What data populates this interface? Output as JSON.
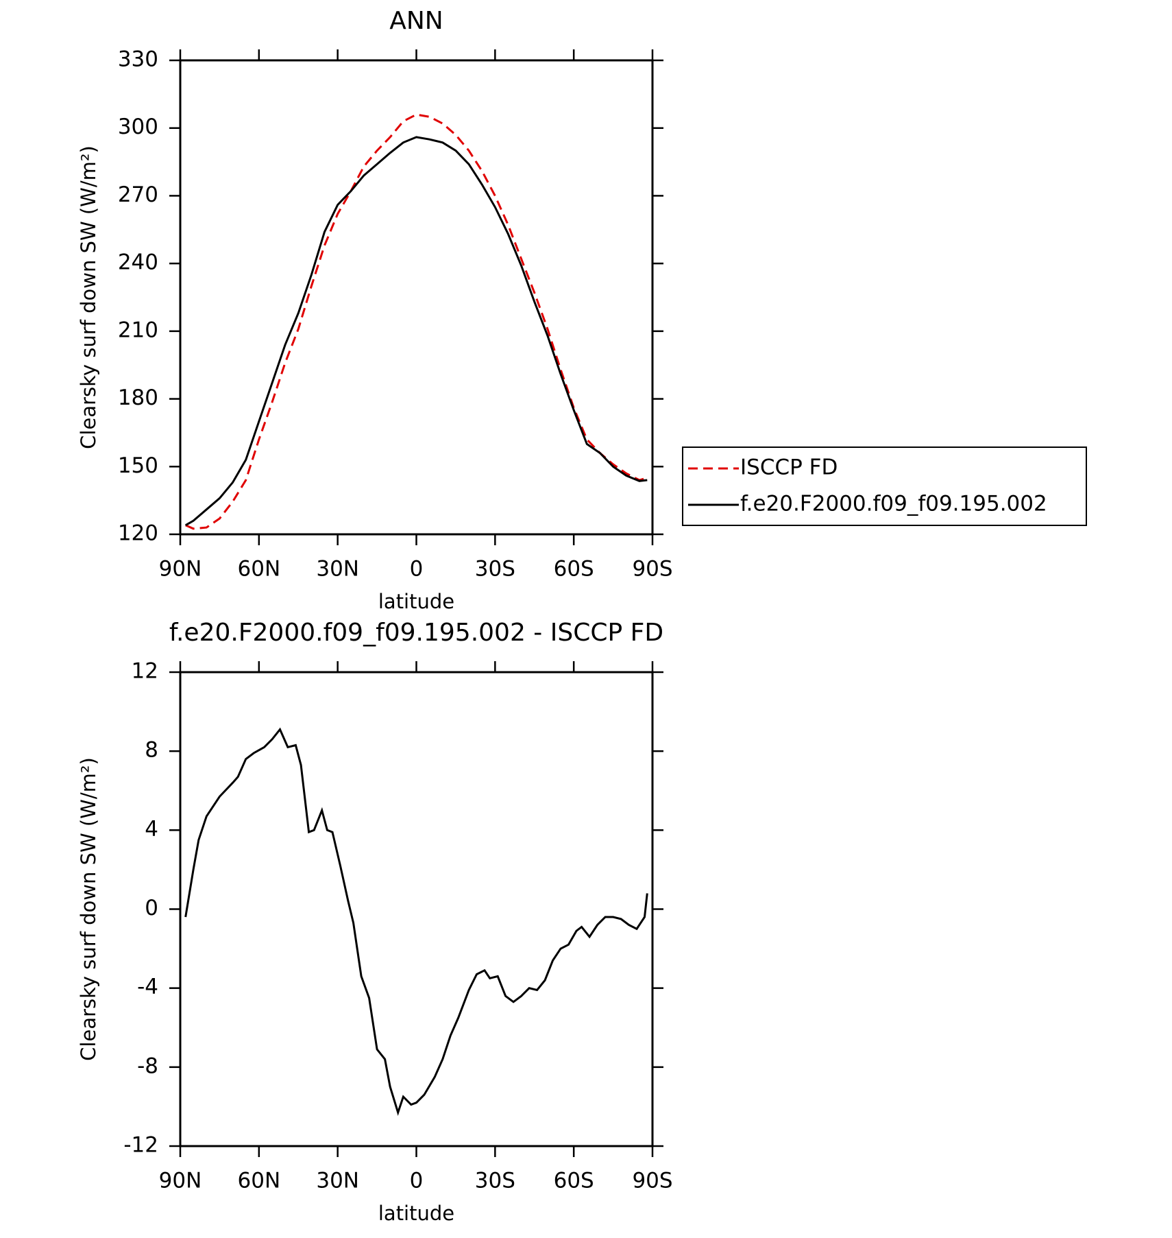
{
  "chart_data": [
    {
      "type": "line",
      "title": "ANN",
      "xlabel": "latitude",
      "ylabel": "Clearsky surf down SW (W/m²)",
      "xlim": [
        90,
        -90
      ],
      "xticks": [
        {
          "value": 90,
          "label": "90N"
        },
        {
          "value": 60,
          "label": "60N"
        },
        {
          "value": 30,
          "label": "30N"
        },
        0,
        {
          "value": -30,
          "label": "30S"
        },
        {
          "value": -60,
          "label": "60S"
        },
        {
          "value": -90,
          "label": "90S"
        }
      ],
      "ylim": [
        120,
        330
      ],
      "yticks": [
        120,
        150,
        180,
        210,
        240,
        270,
        300,
        330
      ],
      "legend": "right",
      "x": [
        88,
        85,
        80,
        75,
        70,
        65,
        60,
        55,
        50,
        45,
        40,
        35,
        30,
        25,
        20,
        15,
        10,
        5,
        0,
        -5,
        -10,
        -15,
        -20,
        -25,
        -30,
        -35,
        -40,
        -45,
        -50,
        -55,
        -60,
        -65,
        -70,
        -75,
        -80,
        -85,
        -88
      ],
      "series": [
        {
          "name": "ISCCP FD",
          "color": "#e00000",
          "dashed": true,
          "values": [
            124,
            122.5,
            123,
            127,
            134.5,
            144,
            162,
            178.5,
            196,
            211,
            230,
            248,
            262,
            272,
            283,
            290,
            296,
            303,
            306,
            305,
            302,
            297,
            290,
            281,
            270,
            257,
            242,
            227,
            211,
            193,
            176,
            162,
            156,
            151,
            147,
            144,
            145
          ]
        },
        {
          "name": "f.e20.F2000.f09_f09.195.002",
          "color": "#000000",
          "dashed": false,
          "values": [
            124,
            126,
            131,
            136,
            143,
            153,
            170,
            187,
            204,
            218,
            235,
            254,
            266,
            272,
            279,
            284,
            289,
            293.6,
            296,
            295,
            293.6,
            290,
            284,
            275,
            265,
            253,
            239,
            223,
            208,
            191,
            175,
            160,
            156,
            150,
            146,
            143.6,
            144
          ]
        }
      ]
    },
    {
      "type": "line",
      "title": "f.e20.F2000.f09_f09.195.002 - ISCCP FD",
      "xlabel": "latitude",
      "ylabel": "Clearsky surf down SW (W/m²)",
      "xlim": [
        90,
        -90
      ],
      "xticks": [
        {
          "value": 90,
          "label": "90N"
        },
        {
          "value": 60,
          "label": "60N"
        },
        {
          "value": 30,
          "label": "30N"
        },
        0,
        {
          "value": -30,
          "label": "30S"
        },
        {
          "value": -60,
          "label": "60S"
        },
        {
          "value": -90,
          "label": "90S"
        }
      ],
      "ylim": [
        -12,
        12
      ],
      "yticks": [
        -12,
        -8,
        -4,
        0,
        4,
        8,
        12
      ],
      "x": [
        88,
        85,
        83,
        80,
        75,
        70,
        68,
        65,
        62,
        58,
        55,
        52,
        49,
        46,
        44,
        41,
        39,
        36,
        34,
        32,
        29,
        26,
        24,
        21,
        18,
        15,
        12,
        10,
        7,
        5,
        2,
        0,
        -3,
        -7,
        -10,
        -13,
        -16,
        -20,
        -23,
        -26,
        -28,
        -31,
        -34,
        -37,
        -40,
        -43,
        -46,
        -49,
        -52,
        -55,
        -58,
        -61,
        -63,
        -66,
        -69,
        -72,
        -75,
        -78,
        -81,
        -84,
        -87,
        -88
      ],
      "series": [
        {
          "name": "f.e20.F2000.f09_f09.195.002 - ISCCP FD",
          "color": "#000000",
          "dashed": false,
          "values": [
            -0.4,
            2,
            3.5,
            4.7,
            5.7,
            6.4,
            6.7,
            7.6,
            7.9,
            8.2,
            8.6,
            9.1,
            8.2,
            8.3,
            7.3,
            3.9,
            4.0,
            5.0,
            4.0,
            3.9,
            2.2,
            0.4,
            -0.7,
            -3.4,
            -4.5,
            -7.1,
            -7.6,
            -9.0,
            -10.3,
            -9.5,
            -9.9,
            -9.8,
            -9.4,
            -8.5,
            -7.6,
            -6.4,
            -5.5,
            -4.1,
            -3.3,
            -3.1,
            -3.5,
            -3.4,
            -4.4,
            -4.7,
            -4.4,
            -4.0,
            -4.1,
            -3.6,
            -2.6,
            -2.0,
            -1.8,
            -1.1,
            -0.9,
            -1.4,
            -0.8,
            -0.4,
            -0.4,
            -0.5,
            -0.8,
            -1.0,
            -0.4,
            0.8
          ]
        }
      ]
    }
  ]
}
